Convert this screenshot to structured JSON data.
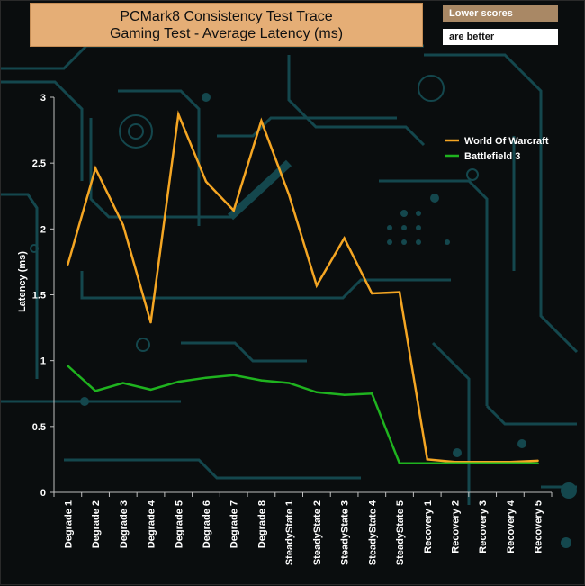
{
  "header": {
    "title_line1": "PCMark8 Consistency Test Trace",
    "title_line2": "Gaming Test -  Average Latency (ms)",
    "note_top": "Lower scores",
    "note_bottom": "are better"
  },
  "colors": {
    "background": "#0a0d0e",
    "circuit": "#14474d",
    "title_bg": "#e5ae76",
    "note_bg": "#a98865",
    "series_1": "#f5a623",
    "series_2": "#1fb31f"
  },
  "chart_data": {
    "type": "line",
    "title": "PCMark8 Consistency Test Trace Gaming Test -  Average Latency (ms)",
    "xlabel": "",
    "ylabel": "Latency (ms)",
    "ylim": [
      0,
      3
    ],
    "yticks": [
      "0",
      "0.5",
      "1",
      "1.5",
      "2",
      "2.5",
      "3"
    ],
    "grid": false,
    "legend_position": "top-right",
    "categories": [
      "Degrade 1",
      "Degrade 2",
      "Degrade 3",
      "Degrade 4",
      "Degrade 5",
      "Degrade 6",
      "Degrade 7",
      "Degrade 8",
      "SteadyState 1",
      "SteadyState 2",
      "SteadyState 3",
      "SteadyState 4",
      "SteadyState 5",
      "Recovery 1",
      "Recovery 2",
      "Recovery 3",
      "Recovery 4",
      "Recovery 5"
    ],
    "series": [
      {
        "name": "World Of Warcraft",
        "color": "#f5a623",
        "values": [
          1.73,
          2.46,
          2.03,
          1.29,
          2.87,
          2.36,
          2.14,
          2.82,
          2.26,
          1.57,
          1.93,
          1.51,
          1.52,
          0.25,
          0.23,
          0.23,
          0.23,
          0.24
        ]
      },
      {
        "name": "Battlefield 3",
        "color": "#1fb31f",
        "values": [
          0.96,
          0.77,
          0.83,
          0.78,
          0.84,
          0.87,
          0.89,
          0.85,
          0.83,
          0.76,
          0.74,
          0.75,
          0.22,
          0.22,
          0.22,
          0.22,
          0.22,
          0.22
        ]
      }
    ]
  }
}
